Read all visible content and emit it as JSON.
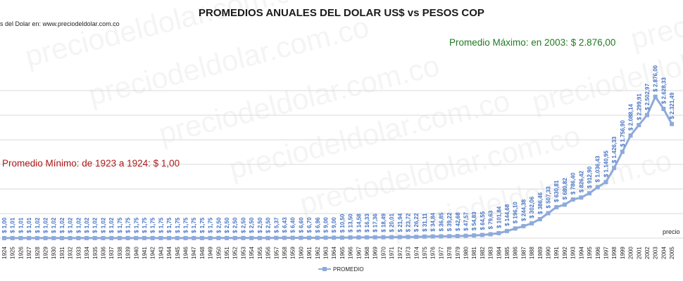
{
  "chart_data": {
    "type": "line",
    "title": "PROMEDIOS ANUALES DEL DOLAR US$ vs PESOS COP",
    "subtitle": "s del Dolar en: www.preciodeldolar.com.co",
    "watermark": "preciodeldolar.com.co",
    "corner_text": "precio",
    "annotations": {
      "max": "Promedio Máximo: en 2003: $ 2.876,00",
      "min": "Promedio Mínimo: de 1923 a 1924: $ 1,00"
    },
    "legend": [
      "PROMEDIO"
    ],
    "legend_position": "bottom",
    "grid": true,
    "ylim": [
      0,
      3200
    ],
    "color": "#8eaadb",
    "series": [
      {
        "name": "PROMEDIO",
        "x": [
          "1924",
          "1925",
          "1926",
          "1927",
          "1928",
          "1929",
          "1930",
          "1931",
          "1932",
          "1933",
          "1934",
          "1935",
          "1936",
          "1937",
          "1938",
          "1939",
          "1940",
          "1941",
          "1942",
          "1943",
          "1944",
          "1945",
          "1946",
          "1947",
          "1948",
          "1949",
          "1950",
          "1951",
          "1952",
          "1953",
          "1954",
          "1955",
          "1956",
          "1957",
          "1958",
          "1959",
          "1960",
          "1961",
          "1962",
          "1963",
          "1964",
          "1965",
          "1966",
          "1967",
          "1968",
          "1969",
          "1970",
          "1971",
          "1972",
          "1973",
          "1974",
          "1975",
          "1976",
          "1977",
          "1978",
          "1979",
          "1980",
          "1981",
          "1982",
          "1983",
          "1984",
          "1985",
          "1986",
          "1987",
          "1988",
          "1989",
          "1990",
          "1991",
          "1992",
          "1993",
          "1994",
          "1995",
          "1996",
          "1997",
          "1998",
          "1999",
          "2000",
          "2001",
          "2002",
          "2003",
          "2004",
          "2005"
        ],
        "values": [
          1.0,
          1.01,
          1.01,
          1.01,
          1.02,
          1.02,
          1.02,
          1.02,
          1.02,
          1.02,
          1.02,
          1.02,
          1.02,
          1.02,
          1.75,
          1.75,
          1.75,
          1.75,
          1.75,
          1.75,
          1.75,
          1.75,
          1.75,
          1.75,
          1.75,
          1.75,
          2.5,
          2.5,
          2.5,
          2.5,
          2.5,
          2.5,
          2.5,
          5.37,
          6.43,
          6.4,
          6.6,
          6.7,
          6.96,
          9.0,
          9.0,
          10.5,
          13.5,
          14.58,
          16.33,
          17.36,
          18.49,
          20.01,
          21.94,
          23.72,
          26.22,
          31.11,
          34.84,
          36.85,
          39.22,
          42.68,
          47.57,
          54.83,
          64.55,
          79.63,
          101.84,
          144.68,
          196.1,
          244.38,
          302.06,
          386.46,
          507.33,
          630.81,
          680.82,
          786.4,
          826.42,
          912.9,
          1036.43,
          1140.95,
          1426.33,
          1756.9,
          2088.14,
          2299.91,
          2502.97,
          2876.0,
          2628.33,
          2321.49
        ],
        "labels": [
          "$ 1,00",
          "$ 1,01",
          "$ 1,01",
          "$ 1,01",
          "$ 1,02",
          "$ 1,02",
          "$ 1,02",
          "$ 1,02",
          "$ 1,02",
          "$ 1,02",
          "$ 1,02",
          "$ 1,02",
          "$ 1,02",
          "$ 1,02",
          "$ 1,75",
          "$ 1,75",
          "$ 1,75",
          "$ 1,75",
          "$ 1,75",
          "$ 1,75",
          "$ 1,75",
          "$ 1,75",
          "$ 1,75",
          "$ 1,75",
          "$ 1,75",
          "$ 1,75",
          "$ 2,50",
          "$ 2,50",
          "$ 2,50",
          "$ 2,50",
          "$ 2,50",
          "$ 2,50",
          "$ 2,50",
          "$ 5,37",
          "$ 6,43",
          "$ 6,40",
          "$ 6,60",
          "$ 6,70",
          "$ 6,96",
          "$ 9,00",
          "$ 9,00",
          "$ 10,50",
          "$ 13,50",
          "$ 14,58",
          "$ 16,33",
          "$ 17,36",
          "$ 18,49",
          "$ 20,01",
          "$ 21,94",
          "$ 23,72",
          "$ 26,22",
          "$ 31,11",
          "$ 34,84",
          "$ 36,85",
          "$ 39,22",
          "$ 42,68",
          "$ 47,57",
          "$ 54,83",
          "$ 64,55",
          "$ 79,63",
          "$ 101,84",
          "$ 144,68",
          "$ 196,10",
          "$ 244,38",
          "$ 302,06",
          "$ 386,46",
          "$ 507,33",
          "$ 630,81",
          "$ 680,82",
          "$ 786,40",
          "$ 826,42",
          "$ 912,90",
          "$ 1.036,43",
          "$ 1.140,95",
          "$ 1.426,33",
          "$ 1.756,90",
          "$ 2.088,14",
          "$ 2.299,91",
          "$ 2.502,97",
          "$ 2.876,00",
          "$ 2.628,33",
          "$ 2.321,49"
        ]
      }
    ]
  }
}
